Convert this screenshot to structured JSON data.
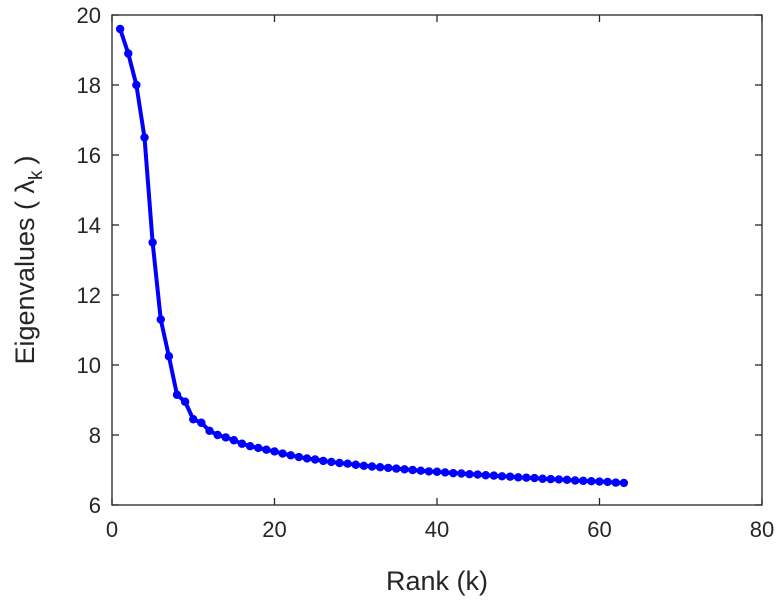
{
  "chart_data": {
    "type": "line",
    "xlabel": "Rank (k)",
    "ylabel_prefix": "Eigenvalues ( ",
    "ylabel_symbol": "λ",
    "ylabel_subscript": "k",
    "ylabel_suffix": ")",
    "xlim": [
      0,
      80
    ],
    "ylim": [
      6,
      20
    ],
    "xticks": [
      0,
      20,
      40,
      60,
      80
    ],
    "yticks": [
      6,
      8,
      10,
      12,
      14,
      16,
      18,
      20
    ],
    "grid": false,
    "line_color": "#0000ff",
    "series": [
      {
        "x": [
          1,
          2,
          3,
          4,
          5,
          6,
          7,
          8,
          9,
          10,
          11,
          12,
          13,
          14,
          15,
          16,
          17,
          18,
          19,
          20,
          21,
          22,
          23,
          24,
          25,
          26,
          27,
          28,
          29,
          30,
          31,
          32,
          33,
          34,
          35,
          36,
          37,
          38,
          39,
          40,
          41,
          42,
          43,
          44,
          45,
          46,
          47,
          48,
          49,
          50,
          51,
          52,
          53,
          54,
          55,
          56,
          57,
          58,
          59,
          60,
          61,
          62,
          63
        ],
        "values": [
          19.6,
          18.9,
          18.0,
          16.5,
          13.5,
          11.3,
          10.25,
          9.15,
          8.95,
          8.45,
          8.35,
          8.12,
          8.0,
          7.93,
          7.85,
          7.75,
          7.68,
          7.63,
          7.58,
          7.53,
          7.47,
          7.42,
          7.37,
          7.33,
          7.3,
          7.26,
          7.23,
          7.2,
          7.18,
          7.15,
          7.12,
          7.1,
          7.08,
          7.06,
          7.04,
          7.02,
          7.0,
          6.98,
          6.96,
          6.95,
          6.93,
          6.91,
          6.9,
          6.88,
          6.87,
          6.85,
          6.84,
          6.82,
          6.81,
          6.79,
          6.78,
          6.77,
          6.75,
          6.74,
          6.73,
          6.72,
          6.7,
          6.69,
          6.68,
          6.67,
          6.66,
          6.64,
          6.63
        ]
      }
    ]
  }
}
